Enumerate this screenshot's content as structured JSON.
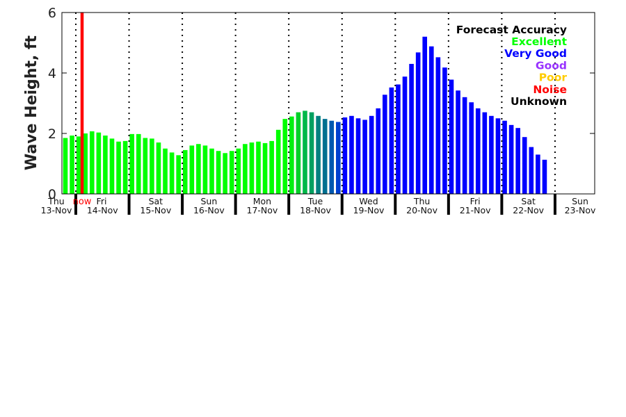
{
  "chart_data": {
    "type": "bar",
    "ylabel": "Wave Height, ft",
    "xlabel": "",
    "ylim": [
      0,
      6
    ],
    "yticks": [
      "0",
      "2",
      "4",
      "6"
    ],
    "bar_interval_hours": 3,
    "days": [
      {
        "dow": "Thu",
        "date": "13-Nov"
      },
      {
        "dow": "Fri",
        "date": "14-Nov"
      },
      {
        "dow": "Sat",
        "date": "15-Nov"
      },
      {
        "dow": "Sun",
        "date": "16-Nov"
      },
      {
        "dow": "Mon",
        "date": "17-Nov"
      },
      {
        "dow": "Tue",
        "date": "18-Nov"
      },
      {
        "dow": "Wed",
        "date": "19-Nov"
      },
      {
        "dow": "Thu",
        "date": "20-Nov"
      },
      {
        "dow": "Fri",
        "date": "21-Nov"
      },
      {
        "dow": "Sat",
        "date": "22-Nov"
      },
      {
        "dow": "Sun",
        "date": "23-Nov"
      }
    ],
    "now_label": "now",
    "values": [
      1.85,
      1.93,
      1.9,
      2.0,
      2.07,
      2.03,
      1.93,
      1.83,
      1.73,
      1.75,
      1.98,
      1.98,
      1.85,
      1.83,
      1.7,
      1.5,
      1.37,
      1.28,
      1.45,
      1.6,
      1.65,
      1.6,
      1.5,
      1.42,
      1.35,
      1.42,
      1.5,
      1.65,
      1.7,
      1.73,
      1.68,
      1.75,
      2.12,
      2.48,
      2.56,
      2.7,
      2.75,
      2.7,
      2.58,
      2.48,
      2.42,
      2.38,
      2.53,
      2.58,
      2.5,
      2.45,
      2.58,
      2.83,
      3.28,
      3.52,
      3.62,
      3.88,
      4.3,
      4.68,
      5.2,
      4.88,
      4.52,
      4.18,
      3.78,
      3.42,
      3.2,
      3.03,
      2.83,
      2.7,
      2.58,
      2.5,
      2.42,
      2.28,
      2.18,
      1.88,
      1.55,
      1.3,
      1.13
    ],
    "bar_colors": {
      "default_excellent": "#00ff00",
      "transition": {
        "34": "#00f010",
        "35": "#00d028",
        "36": "#00b848",
        "37": "#00a060",
        "38": "#008080",
        "39": "#007090",
        "40": "#0058b0",
        "41": "#0040d0"
      },
      "very_good": "#0000ff",
      "very_good_from_index": 42
    },
    "legend": {
      "title": "Forecast Accuracy",
      "placement": "top-right",
      "entries": [
        {
          "label": "Excellent",
          "color": "#00ff00"
        },
        {
          "label": "Very Good",
          "color": "#0000ff"
        },
        {
          "label": "Good",
          "color": "#9933ff"
        },
        {
          "label": "Poor",
          "color": "#ffcc00"
        },
        {
          "label": "Noise",
          "color": "#ff0000"
        },
        {
          "label": "Unknown",
          "color": "#000000"
        }
      ]
    },
    "now_color": "#ff0000"
  }
}
